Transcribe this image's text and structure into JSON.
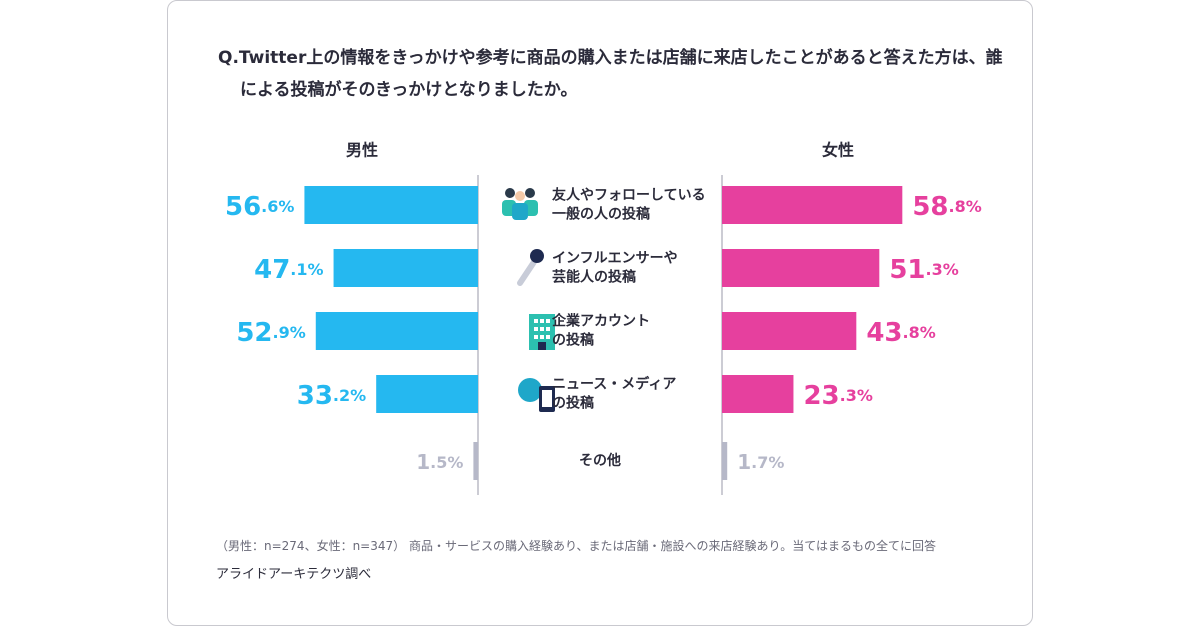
{
  "chart_data": {
    "type": "butterfly",
    "title": "Q.Twitter上の情報をきっかけや参考に商品の購入または店舗に来店したことがあると答えた方は、誰による投稿がそのきっかけとなりましたか。",
    "categories": [
      [
        "友人やフォローしている",
        "一般の人の投稿"
      ],
      [
        "インフルエンサーや",
        "芸能人の投稿"
      ],
      [
        "企業アカウント",
        "の投稿"
      ],
      [
        "ニュース・メディア",
        "の投稿"
      ],
      [
        "その他"
      ]
    ],
    "series": [
      {
        "name": "男性",
        "color": "#25b8f0",
        "other_color": "#b6b8c8",
        "values": [
          56.6,
          47.1,
          52.9,
          33.2,
          1.5
        ],
        "value_labels": [
          "56.6%",
          "47.1%",
          "52.9%",
          "33.2%",
          "1.5%"
        ]
      },
      {
        "name": "女性",
        "color": "#e6409e",
        "other_color": "#b6b8c8",
        "values": [
          58.8,
          51.3,
          43.8,
          23.3,
          1.7
        ],
        "value_labels": [
          "58.8%",
          "51.3%",
          "43.8%",
          "23.3%",
          "1.7%"
        ]
      }
    ],
    "xlim": [
      0,
      60
    ],
    "note": "（男性：n=274、女性：n=347） 商品・サービスの購入経験あり、または店舗・施設への来店経験あり。当てはまるもの全てに回答",
    "source": "アライドアーキテクツ調べ"
  }
}
